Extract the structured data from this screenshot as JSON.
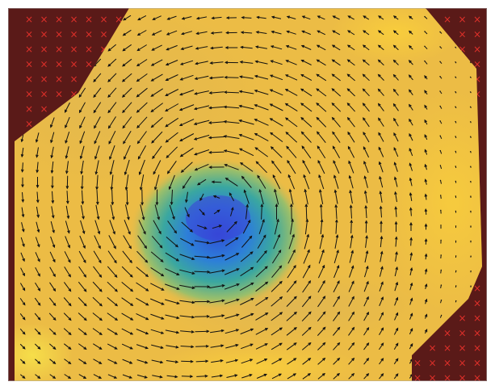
{
  "figure": {
    "type": "vector-field-heatmap",
    "description_visible": false,
    "colors": {
      "masked_region": "#5a1a18",
      "mask_marker": "#e0302a",
      "field_high": "#f5c23a",
      "field_mid": "#e9b94a",
      "field_teal": "#3aa7a0",
      "field_low": "#2f4fd6",
      "arrow": "#111111",
      "border": "#a8a8a8"
    },
    "vortex": {
      "rotation": "counter-clockwise",
      "center_fraction": [
        0.43,
        0.55
      ]
    },
    "mask_marker_glyph": "×"
  }
}
